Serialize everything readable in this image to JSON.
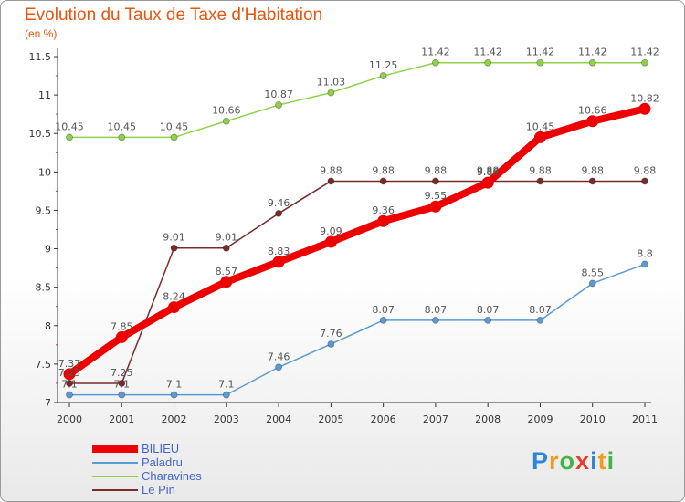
{
  "header": {
    "title": "Evolution du Taux de Taxe d'Habitation",
    "unit": "(en %)"
  },
  "chart_data": {
    "type": "line",
    "title": "Evolution du Taux de Taxe d'Habitation",
    "subtitle": "(en %)",
    "xlabel": "",
    "ylabel": "",
    "x": [
      "2000",
      "2001",
      "2002",
      "2003",
      "2004",
      "2005",
      "2006",
      "2007",
      "2008",
      "2009",
      "2010",
      "2011"
    ],
    "ylim": [
      7,
      11.5
    ],
    "yticks": [
      "7",
      "7.5",
      "8",
      "8.5",
      "9",
      "9.5",
      "10",
      "10.5",
      "11",
      "11.5"
    ],
    "grid": false,
    "legend": "bottom-left",
    "series": [
      {
        "name": "BILIEU",
        "color": "#ee0000",
        "values": [
          7.37,
          7.85,
          8.24,
          8.57,
          8.83,
          9.09,
          9.36,
          9.55,
          9.86,
          10.45,
          10.66,
          10.82
        ]
      },
      {
        "name": "Paladru",
        "color": "#5b9bd5",
        "values": [
          7.1,
          7.1,
          7.1,
          7.1,
          7.46,
          7.76,
          8.07,
          8.07,
          8.07,
          8.07,
          8.55,
          8.8
        ]
      },
      {
        "name": "Charavines",
        "color": "#8fd24a",
        "values": [
          10.45,
          10.45,
          10.45,
          10.66,
          10.87,
          11.03,
          11.25,
          11.42,
          11.42,
          11.42,
          11.42,
          11.42
        ]
      },
      {
        "name": "Le Pin",
        "color": "#7a2a2a",
        "values": [
          7.25,
          7.25,
          9.01,
          9.01,
          9.46,
          9.88,
          9.88,
          9.88,
          9.88,
          9.88,
          9.88,
          9.88
        ]
      }
    ]
  },
  "branding": {
    "logo_letters": [
      "P",
      "r",
      "o",
      "x",
      "i",
      "t",
      "i"
    ],
    "logo_colors": [
      "#2f86d6",
      "#f39a1d",
      "#44b544",
      "#e83a2f",
      "#2f86d6",
      "#f39a1d",
      "#44b544"
    ]
  }
}
